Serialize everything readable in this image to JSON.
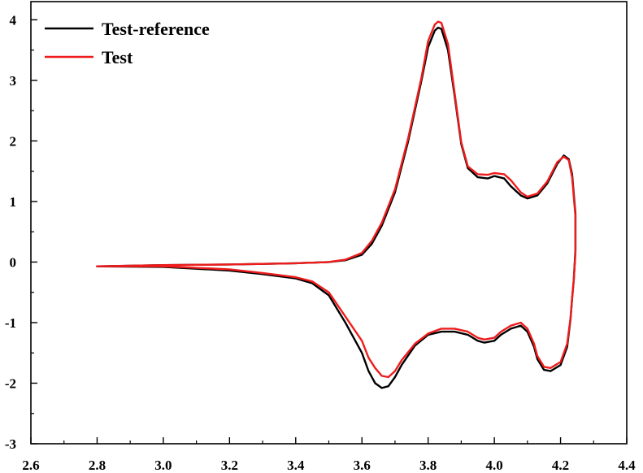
{
  "chart_data": {
    "type": "line",
    "title": "",
    "xlabel": "",
    "ylabel": "",
    "xlim": [
      2.6,
      4.4
    ],
    "ylim": [
      -3,
      4.3
    ],
    "x_ticks": [
      "2.6",
      "2.8",
      "3.0",
      "3.2",
      "3.4",
      "3.6",
      "3.8",
      "4.0",
      "4.2",
      "4.4"
    ],
    "y_ticks": [
      "-3",
      "-2",
      "-1",
      "0",
      "1",
      "2",
      "3",
      "4"
    ],
    "grid": false,
    "legend_position": "top-left",
    "series": [
      {
        "name": "Test-reference",
        "color": "#000000",
        "x": [
          2.8,
          3.0,
          3.2,
          3.4,
          3.5,
          3.55,
          3.6,
          3.63,
          3.66,
          3.7,
          3.74,
          3.78,
          3.8,
          3.82,
          3.83,
          3.84,
          3.86,
          3.88,
          3.9,
          3.92,
          3.95,
          3.98,
          4.0,
          4.03,
          4.05,
          4.08,
          4.1,
          4.13,
          4.16,
          4.19,
          4.21,
          4.225,
          4.235,
          4.245,
          4.245,
          4.24,
          4.235,
          4.23,
          4.22,
          4.2,
          4.17,
          4.15,
          4.13,
          4.12,
          4.1,
          4.08,
          4.05,
          4.02,
          4.0,
          3.97,
          3.95,
          3.92,
          3.88,
          3.84,
          3.8,
          3.76,
          3.72,
          3.7,
          3.68,
          3.66,
          3.64,
          3.62,
          3.6,
          3.55,
          3.5,
          3.45,
          3.4,
          3.3,
          3.2,
          3.0,
          2.8
        ],
        "y": [
          -0.07,
          -0.05,
          -0.04,
          -0.02,
          0.0,
          0.03,
          0.12,
          0.3,
          0.6,
          1.15,
          2.0,
          3.0,
          3.55,
          3.82,
          3.87,
          3.85,
          3.5,
          2.75,
          1.95,
          1.55,
          1.4,
          1.38,
          1.42,
          1.38,
          1.25,
          1.1,
          1.05,
          1.1,
          1.3,
          1.62,
          1.76,
          1.7,
          1.45,
          0.8,
          0.2,
          -0.3,
          -0.6,
          -0.95,
          -1.4,
          -1.7,
          -1.8,
          -1.78,
          -1.6,
          -1.4,
          -1.15,
          -1.05,
          -1.1,
          -1.2,
          -1.3,
          -1.33,
          -1.3,
          -1.2,
          -1.15,
          -1.15,
          -1.2,
          -1.38,
          -1.7,
          -1.9,
          -2.05,
          -2.08,
          -2.0,
          -1.8,
          -1.5,
          -1.0,
          -0.55,
          -0.35,
          -0.27,
          -0.2,
          -0.14,
          -0.08,
          -0.07
        ]
      },
      {
        "name": "Test",
        "color": "#ee1c1c",
        "x": [
          2.8,
          3.0,
          3.2,
          3.4,
          3.5,
          3.55,
          3.6,
          3.63,
          3.66,
          3.7,
          3.74,
          3.78,
          3.8,
          3.82,
          3.83,
          3.84,
          3.86,
          3.88,
          3.9,
          3.92,
          3.95,
          3.98,
          4.0,
          4.03,
          4.05,
          4.08,
          4.1,
          4.13,
          4.16,
          4.19,
          4.21,
          4.225,
          4.235,
          4.245,
          4.245,
          4.24,
          4.235,
          4.23,
          4.22,
          4.2,
          4.17,
          4.15,
          4.13,
          4.12,
          4.1,
          4.08,
          4.05,
          4.02,
          4.0,
          3.97,
          3.95,
          3.92,
          3.88,
          3.84,
          3.8,
          3.76,
          3.72,
          3.7,
          3.68,
          3.66,
          3.64,
          3.62,
          3.6,
          3.55,
          3.5,
          3.45,
          3.4,
          3.3,
          3.2,
          3.0,
          2.8
        ],
        "y": [
          -0.07,
          -0.05,
          -0.04,
          -0.02,
          0.0,
          0.04,
          0.15,
          0.35,
          0.65,
          1.2,
          2.05,
          3.05,
          3.65,
          3.92,
          3.97,
          3.95,
          3.6,
          2.8,
          1.98,
          1.58,
          1.45,
          1.44,
          1.47,
          1.45,
          1.35,
          1.15,
          1.08,
          1.13,
          1.33,
          1.65,
          1.74,
          1.68,
          1.4,
          0.75,
          0.15,
          -0.3,
          -0.6,
          -0.93,
          -1.35,
          -1.65,
          -1.75,
          -1.73,
          -1.55,
          -1.35,
          -1.1,
          -1.0,
          -1.05,
          -1.15,
          -1.25,
          -1.28,
          -1.25,
          -1.15,
          -1.1,
          -1.1,
          -1.18,
          -1.35,
          -1.62,
          -1.8,
          -1.9,
          -1.88,
          -1.75,
          -1.58,
          -1.3,
          -0.9,
          -0.5,
          -0.32,
          -0.25,
          -0.18,
          -0.12,
          -0.07,
          -0.07
        ]
      }
    ]
  }
}
